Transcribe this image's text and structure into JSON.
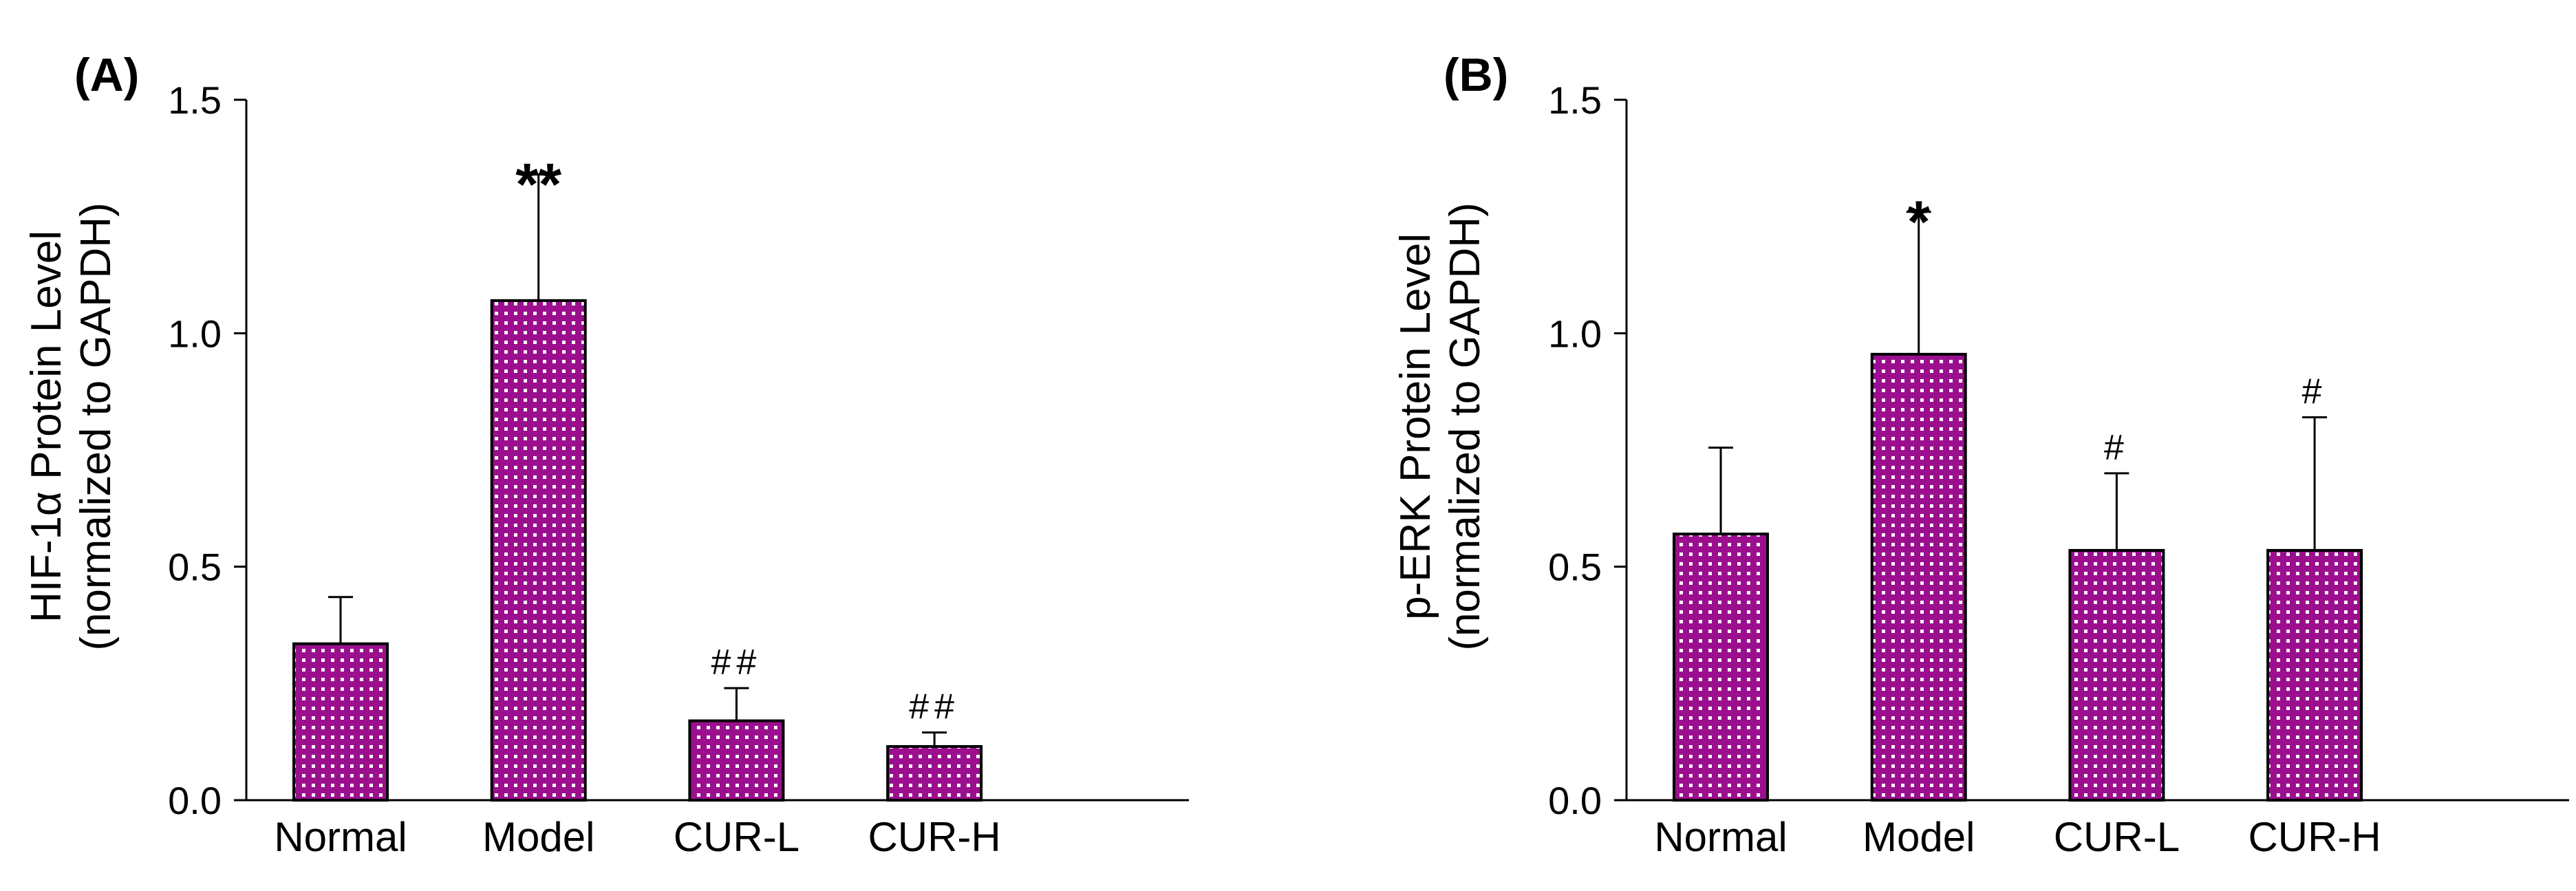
{
  "chart_data": [
    {
      "type": "bar",
      "panel_label": "(A)",
      "categories": [
        "Normal",
        "Model",
        "CUR-L",
        "CUR-H"
      ],
      "values": [
        0.335,
        1.07,
        0.17,
        0.115
      ],
      "errors": [
        0.1,
        0.27,
        0.07,
        0.03
      ],
      "significance": [
        "",
        "**",
        "##",
        "##"
      ],
      "ylabel_line1": "HIF-1α Protein Level",
      "ylabel_line2": "(normalized to GAPDH)",
      "xlabel": "",
      "ylim": [
        0,
        1.5
      ],
      "yticks": [
        "0.0",
        "0.5",
        "1.0",
        "1.5"
      ],
      "bar_color": "#9b0f8f",
      "bar_pattern": "white-dot-grid"
    },
    {
      "type": "bar",
      "panel_label": "(B)",
      "categories": [
        "Normal",
        "Model",
        "CUR-L",
        "CUR-H"
      ],
      "values": [
        0.57,
        0.955,
        0.535,
        0.535
      ],
      "errors": [
        0.185,
        0.305,
        0.165,
        0.285
      ],
      "significance": [
        "",
        "*",
        "#",
        "#"
      ],
      "ylabel_line1": "p-ERK Protein Level",
      "ylabel_line2": "(normalized to GAPDH)",
      "xlabel": "",
      "ylim": [
        0,
        1.5
      ],
      "yticks": [
        "0.0",
        "0.5",
        "1.0",
        "1.5"
      ],
      "bar_color": "#9b0f8f",
      "bar_pattern": "white-dot-grid"
    }
  ]
}
